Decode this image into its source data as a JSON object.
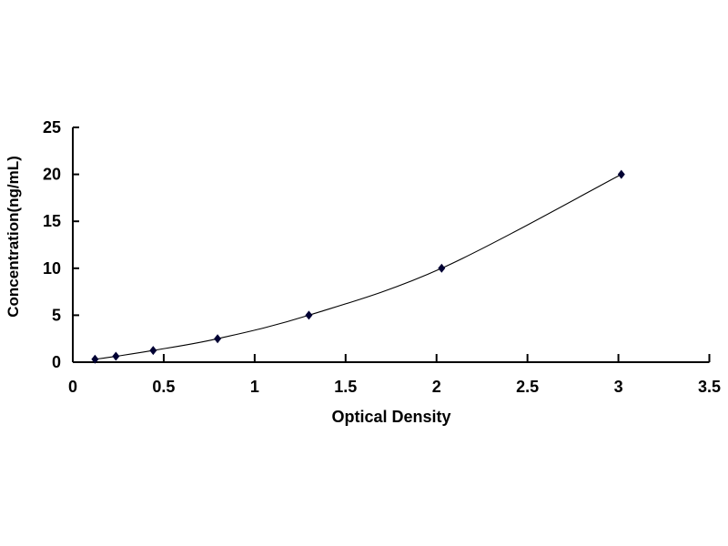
{
  "chart_data": {
    "type": "scatter",
    "title": "",
    "xlabel": "Optical Density",
    "ylabel": "Concentration(ng/mL)",
    "xlim": [
      0,
      3.5
    ],
    "ylim": [
      0,
      25
    ],
    "xticks": [
      "0",
      "0.5",
      "1",
      "1.5",
      "2",
      "2.5",
      "3",
      "3.5"
    ],
    "yticks": [
      "0",
      "5",
      "10",
      "15",
      "20",
      "25"
    ],
    "grid": false,
    "legend": "none",
    "smoothed_line": true,
    "marker": "diamond",
    "series": [
      {
        "x": [
          0.122,
          0.237,
          0.442,
          0.796,
          1.298,
          2.028,
          3.016
        ],
        "y": [
          0.31,
          0.625,
          1.25,
          2.5,
          5,
          10,
          20
        ],
        "color": "#000033"
      }
    ]
  }
}
